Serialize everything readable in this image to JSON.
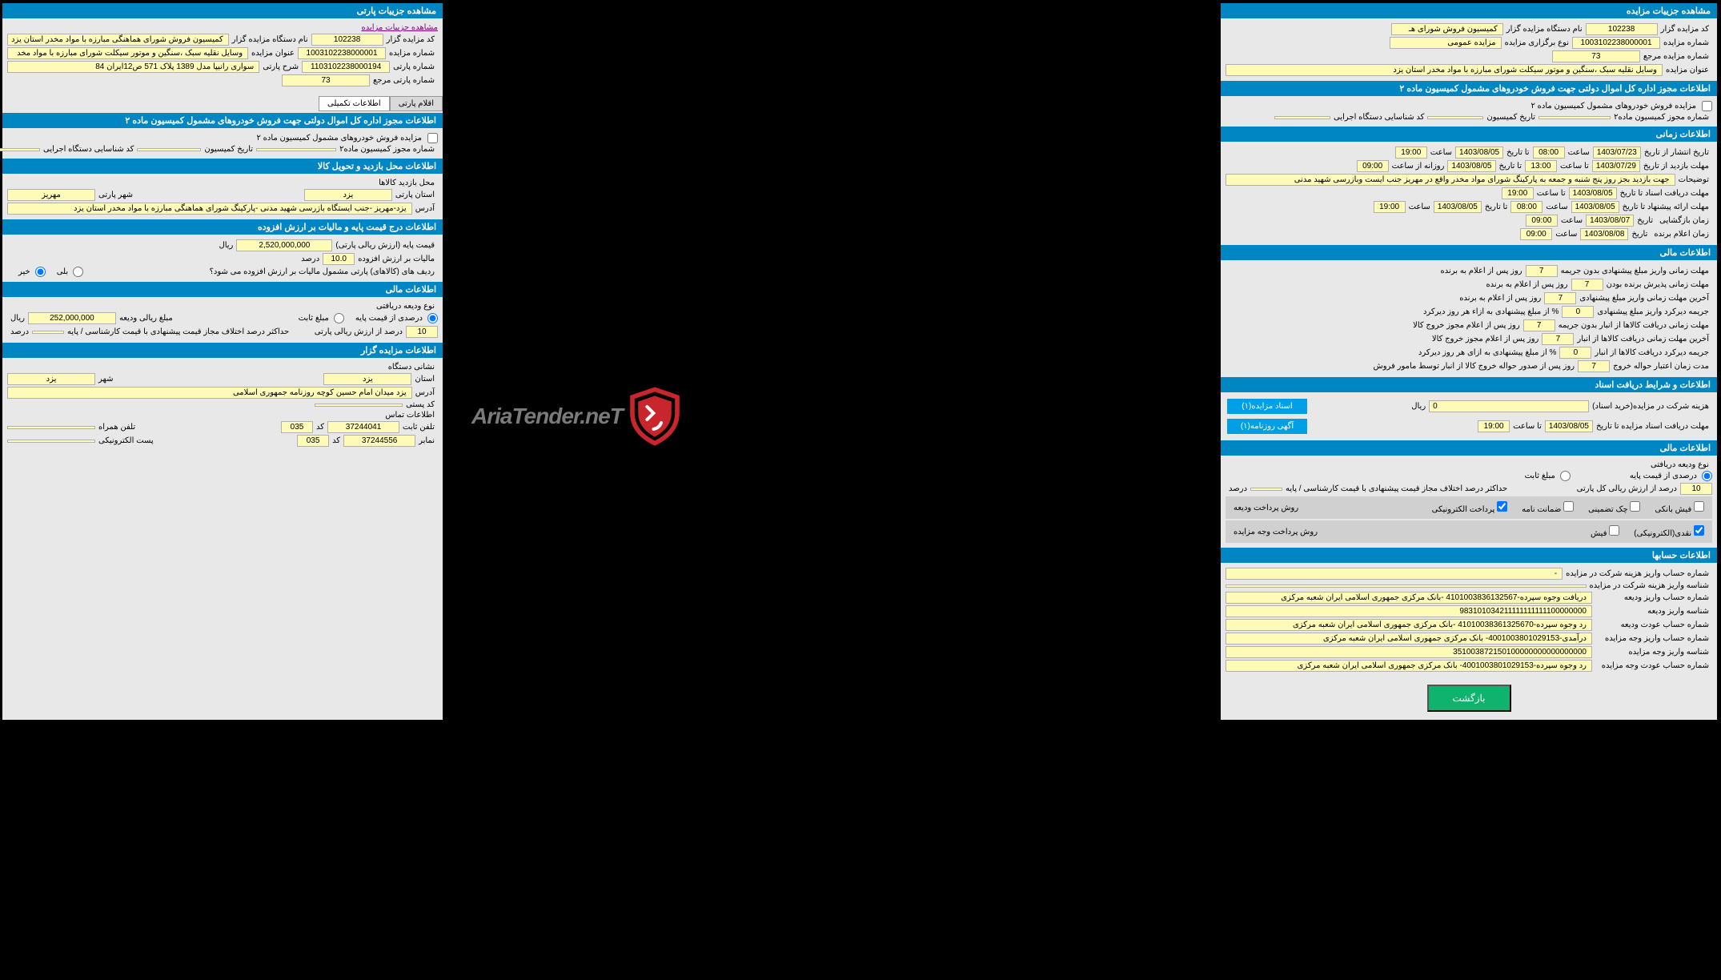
{
  "colors": {
    "header_bg": "#0186c4",
    "header_fg": "#ffffff",
    "val_bg": "#fefab7",
    "panel_bg": "#e8e8e8",
    "btn_blue": "#01a0e6",
    "btn_green": "#0fb36e"
  },
  "left": {
    "hdr1": "مشاهده جزییات پارتی",
    "link": "مشاهده جزییات مزایده",
    "rows1": {
      "l1": "کد مزایده گزار",
      "v1": "102238",
      "l1b": "نام دستگاه مزایده گزار",
      "v1b": "کمیسیون فروش شورای هماهنگی مبارزه با مواد مخدر استان یزد",
      "l2": "شماره مزایده",
      "v2": "1003102238000001",
      "l2b": "عنوان مزایده",
      "v2b": "وسایل نقلیه سبک ،سنگین و موتور سیکلت شورای مبارزه با مواد مخد",
      "l3": "شماره پارتی",
      "v3": "1103102238000194",
      "l3b": "شرح پارتی",
      "v3b": "سواری رانیپا مدل 1389 پلاک 571 ص12ایران 84",
      "l4": "شماره پارتی مرجع",
      "v4": "73"
    },
    "tabs": {
      "t1": "اقلام پارتی",
      "t2": "اطلاعات تکمیلی"
    },
    "hdr2": "اطلاعات مجوز اداره کل اموال دولتی جهت فروش خودروهای مشمول کمیسیون ماده ۲",
    "rows2": {
      "chk": "مزایده فروش خودروهای مشمول کمیسیون ماده ۲",
      "l1": "شماره مجوز کمیسیون ماده۲",
      "l2": "تاریخ کمیسیون",
      "l3": "کد شناسایی دستگاه اجرایی"
    },
    "hdr3": "اطلاعات محل بازدید و تحویل کالا",
    "rows3": {
      "l1": "محل بازدید کالاها",
      "l2": "استان پارتی",
      "v2": "یزد",
      "l3": "شهر پارتی",
      "v3": "مهریز",
      "l4": "آدرس",
      "v4": "یزد-مهریز -جنب ایستگاه بازرسی شهید مدنی -پارکینگ شورای هماهنگی مبارزه با مواد مخدر استان یزد"
    },
    "hdr4": "اطلاعات درج قیمت پایه و مالیات بر ارزش افزوده",
    "rows4": {
      "l1": "قیمت پایه (ارزش ریالی پارتی)",
      "v1": "2,520,000,000",
      "u1": "ریال",
      "l2": "مالیات بر ارزش افزوده",
      "v2": "10.0",
      "u2": "درصد",
      "l3": "ردیف های (کالاهای) پارتی مشمول مالیات بر ارزش افزوده می شود؟",
      "r1": "بلی",
      "r2": "خیر"
    },
    "hdr5": "اطلاعات مالی",
    "rows5": {
      "l1": "نوع ودیعه دریافتی",
      "r1": "درصدی از قیمت پایه",
      "r2": "مبلغ ثابت",
      "l2": "مبلغ ریالی ودیعه",
      "v2": "252,000,000",
      "u2": "ریال",
      "l3": "درصد از ارزش ریالی پارتی",
      "v3": "10",
      "l4": "حداکثر درصد اختلاف مجاز قیمت پیشنهادی با قیمت کارشناسی / پایه",
      "u4": "درصد"
    },
    "hdr6": "اطلاعات مزایده گزار",
    "rows6": {
      "l1": "نشانی دستگاه",
      "l2": "استان",
      "v2": "یزد",
      "l3": "شهر",
      "v3": "یزد",
      "l4": "آدرس",
      "v4": "یزد میدان امام حسین کوچه روزنامه جمهوری اسلامی",
      "l5": "کد پستی",
      "l6": "اطلاعات تماس",
      "l7": "تلفن ثابت",
      "v7": "37244041",
      "l7b": "کد",
      "v7b": "035",
      "l7c": "تلفن همراه",
      "l8": "نمابر",
      "v8": "37244556",
      "l8b": "کد",
      "v8b": "035",
      "l8c": "پست الکترونیکی"
    }
  },
  "right": {
    "hdr1": "مشاهده جزییات مزایده",
    "rows1": {
      "l1": "کد مزایده گزار",
      "v1": "102238",
      "l1b": "نام دستگاه مزایده گزار",
      "v1b": "کمیسیون فروش شورای هـ",
      "l2": "شماره مزایده",
      "v2": "1003102238000001",
      "l2b": "نوع برگزاری مزایده",
      "v2b": "مزایده عمومی",
      "l3": "شماره مزایده مرجع",
      "v3": "73",
      "l4": "عنوان مزایده",
      "v4": "وسایل نقلیه سبک ،سنگین و موتور سیکلت شورای مبارزه با مواد مخدر استان یزد"
    },
    "hdr2": "اطلاعات مجوز اداره کل اموال دولتی جهت فروش خودروهای مشمول کمیسیون ماده ۲",
    "rows2": {
      "chk": "مزایده فروش خودروهای مشمول کمیسیون ماده ۲",
      "l1": "شماره مجوز کمیسیون ماده۲",
      "l2": "تاریخ کمیسیون",
      "l3": "کد شناسایی دستگاه اجرایی"
    },
    "hdr3": "اطلاعات زمانی",
    "rows3": [
      {
        "l": "تاریخ انتشار از تاریخ",
        "d": "1403/07/23",
        "t": "08:00",
        "l2": "تا تاریخ",
        "d2": "1403/08/05",
        "t2": "19:00",
        "sl": "ساعت",
        "sl2": "ساعت"
      },
      {
        "l": "مهلت بازدید از تاریخ",
        "d": "1403/07/29",
        "t": "13:00",
        "l2": "تا تاریخ",
        "d2": "1403/08/05",
        "t2": "09:00",
        "sl": "تا ساعت",
        "sl2": "روزانه از ساعت"
      },
      {
        "full": "توضیحات",
        "v": "جهت بازدید بجز روز پنج شنبه و جمعه به پارکینگ شورای مواد مخدر واقع در مهریز جنب ایست وبازرسی شهید مدنی"
      },
      {
        "l": "مهلت دریافت اسناد تا تاریخ",
        "d": "1403/08/05",
        "t": "19:00",
        "sl": "تا ساعت"
      },
      {
        "l": "مهلت ارائه پیشنهاد تا تاریخ",
        "d": "1403/08/05",
        "t": "08:00",
        "l2": "تا تاریخ",
        "d2": "1403/08/05",
        "t2": "19:00",
        "sl": "ساعت",
        "sl2": "ساعت"
      },
      {
        "l": "زمان بازگشایی",
        "l2": "تاریخ",
        "d": "1403/08/07",
        "t": "09:00",
        "sl": "ساعت"
      },
      {
        "l": "زمان اعلام برنده",
        "l2": "تاریخ",
        "d": "1403/08/08",
        "t": "09:00",
        "sl": "ساعت"
      }
    ],
    "hdr4": "اطلاعات مالی",
    "rows4": [
      {
        "l": "مهلت زمانی واریز مبلغ پیشنهادی بدون جریمه",
        "v": "7",
        "u": "روز پس از اعلام به برنده"
      },
      {
        "l": "مهلت زمانی پذیرش برنده بودن",
        "v": "7",
        "u": "روز پس از اعلام به برنده"
      },
      {
        "l": "آخرین مهلت زمانی واریز مبلغ پیشنهادی",
        "v": "7",
        "u": "روز پس از اعلام به برنده"
      },
      {
        "l": "جریمه دیرکرد واریز مبلغ پیشنهادی",
        "v": "0",
        "u": "% از مبلغ پیشنهادی به ازاء هر روز دیرکرد"
      },
      {
        "l": "مهلت زمانی دریافت کالاها از انبار بدون جریمه",
        "v": "7",
        "u": "روز پس از اعلام مجوز خروج کالا"
      },
      {
        "l": "آخرین مهلت زمانی دریافت کالاها از انبار",
        "v": "7",
        "u": "روز پس از اعلام مجوز خروج کالا"
      },
      {
        "l": "جریمه دیرکرد دریافت کالاها از انبار",
        "v": "0",
        "u": "% از مبلغ پیشنهادی به ازای هر روز دیرکرد"
      },
      {
        "l": "مدت زمان اعتبار حواله خروج",
        "v": "7",
        "u": "روز پس از صدور حواله خروج کالا از انبار توسط مامور فروش"
      }
    ],
    "hdr5": "اطلاعات و شرایط دریافت اسناد",
    "rows5": {
      "l1": "هزینه شرکت در مزایده(خرید اسناد)",
      "v1": "0",
      "u1": "ریال",
      "btn1": "اسناد مزایده(۱)",
      "btn2": "آگهی روزنامه(۱)",
      "l2": "مهلت دریافت اسناد مزایده تا تاریخ",
      "d2": "1403/08/05",
      "t2": "19:00",
      "sl": "تا ساعت"
    },
    "hdr6": "اطلاعات مالی",
    "rows6": {
      "l1": "نوع ودیعه دریافتی",
      "r1": "درصدی از قیمت پایه",
      "r2": "مبلغ ثابت",
      "l2": "درصد از ارزش ریالی کل پارتی",
      "v2": "10",
      "l3": "حداکثر درصد اختلاف مجاز قیمت پیشنهادی با قیمت کارشناسی / پایه",
      "u3": "درصد",
      "l4": "روش پرداخت ودیعه",
      "c1": "پرداخت الکترونیکی",
      "c2": "ضمانت نامه",
      "c3": "چک تضمینی",
      "c4": "فیش بانکی",
      "l5": "روش پرداخت وجه مزایده",
      "c5": "فیش",
      "c6": "نقدی(الکترونیکی)"
    },
    "hdr7": "اطلاعات حسابها",
    "rows7": [
      {
        "l": "شماره حساب واریز هزینه شرکت در مزایده",
        "v": "-"
      },
      {
        "l": "شناسه واریز هزینه شرکت در مزایده",
        "v": ""
      },
      {
        "l": "شماره حساب واریز ودیعه",
        "v": "دریافت وجوه سپرده-4101003836132567 -بانک مرکزی جمهوری اسلامی ایران شعبه مرکزی"
      },
      {
        "l": "شناسه واریز ودیعه",
        "v": "983101034211111111111100000000"
      },
      {
        "l": "شماره حساب عودت ودیعه",
        "v": "رد وجوه سپرده-41010038361325670 -بانک مرکزی جمهوری اسلامی ایران شعبه مرکزی"
      },
      {
        "l": "شماره حساب واریز وجه مزایده",
        "v": "درآمدی-4001003801029153- بانک مرکزی جمهوری اسلامی ایران شعبه مرکزی"
      },
      {
        "l": "شناسه واریز وجه مزایده",
        "v": "351003872150100000000000000000"
      },
      {
        "l": "شماره حساب عودت وجه مزایده",
        "v": "رد وجوه سپرده-4001003801029153- بانک مرکزی جمهوری اسلامی ایران شعبه مرکزی"
      }
    ],
    "btn_back": "بازگشت"
  },
  "watermark": "AriaTender.neT"
}
